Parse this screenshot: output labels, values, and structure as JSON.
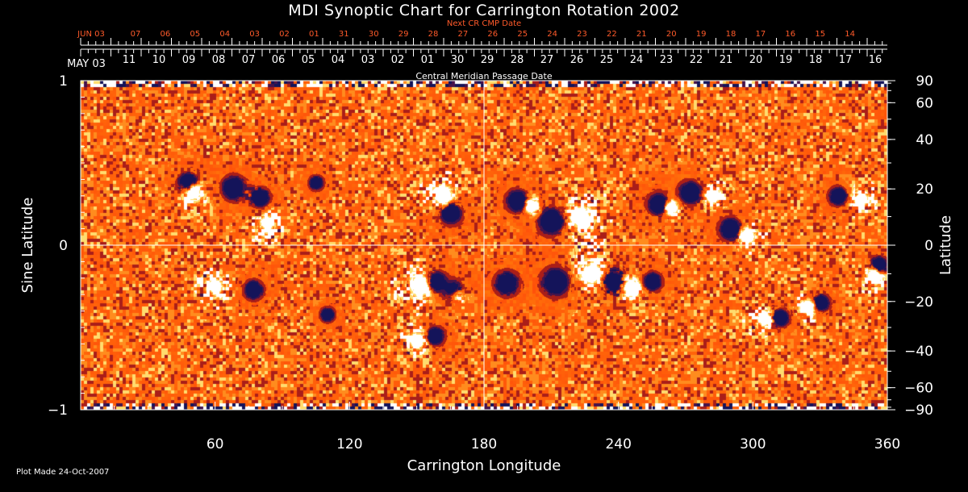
{
  "page": {
    "title": "MDI Synoptic Chart for Carrington Rotation 2002",
    "footer": "Plot Made 24-Oct-2007"
  },
  "chart_data": {
    "type": "heatmap",
    "title": "MDI Synoptic Chart for Carrington Rotation 2002",
    "xlabel": "Carrington Longitude",
    "ylabel_left": "Sine Latitude",
    "ylabel_right": "Latitude",
    "top_axis_label": "Next CR CMP Date",
    "mid_axis_label": "Central Meridian Passage Date",
    "xlim": [
      0,
      360
    ],
    "ylim": [
      -1,
      1
    ],
    "x_ticks": [
      60,
      120,
      180,
      240,
      300,
      360
    ],
    "y_left_ticks": [
      {
        "value": 1,
        "label": "1"
      },
      {
        "value": 0,
        "label": "0"
      },
      {
        "value": -1,
        "label": "−1"
      }
    ],
    "y_right_ticks": [
      {
        "deg": 90,
        "label": "90"
      },
      {
        "deg": 60,
        "label": "60"
      },
      {
        "deg": 40,
        "label": "40"
      },
      {
        "deg": 20,
        "label": "20"
      },
      {
        "deg": 0,
        "label": "0"
      },
      {
        "deg": -20,
        "label": "−20"
      },
      {
        "deg": -40,
        "label": "−40"
      },
      {
        "deg": -60,
        "label": "−60"
      },
      {
        "deg": -90,
        "label": "−90"
      }
    ],
    "upper_date_labels": [
      "JUN 03",
      "07",
      "06",
      "05",
      "04",
      "03",
      "02",
      "01",
      "31",
      "30",
      "29",
      "28",
      "27",
      "26",
      "25",
      "24",
      "23",
      "22",
      "21",
      "20",
      "19",
      "18",
      "17",
      "16",
      "15",
      "14"
    ],
    "lower_date_labels": [
      "MAY 03",
      "11",
      "10",
      "09",
      "08",
      "07",
      "06",
      "05",
      "04",
      "03",
      "02",
      "01",
      "30",
      "29",
      "28",
      "27",
      "26",
      "25",
      "24",
      "23",
      "22",
      "21",
      "20",
      "19",
      "18",
      "17",
      "16"
    ],
    "colors": {
      "background": "#000000",
      "field": "#ff5a10",
      "positive": "#ffffff",
      "negative": "#14145a",
      "axis": "#ffffff",
      "date_text": "#ff5a2a"
    },
    "active_regions": [
      {
        "lon": 48,
        "sinlat": 0.38,
        "pol": -1,
        "s": 5
      },
      {
        "lon": 50,
        "sinlat": 0.33,
        "pol": 1,
        "s": 5
      },
      {
        "lon": 68,
        "sinlat": 0.35,
        "pol": -1,
        "s": 5
      },
      {
        "lon": 80,
        "sinlat": 0.29,
        "pol": -1,
        "s": 4
      },
      {
        "lon": 83,
        "sinlat": 0.13,
        "pol": 1,
        "s": 4
      },
      {
        "lon": 105,
        "sinlat": 0.38,
        "pol": -1,
        "s": 3
      },
      {
        "lon": 162,
        "sinlat": 0.3,
        "pol": 1,
        "s": 5
      },
      {
        "lon": 165,
        "sinlat": 0.2,
        "pol": -1,
        "s": 5
      },
      {
        "lon": 195,
        "sinlat": 0.27,
        "pol": -1,
        "s": 5
      },
      {
        "lon": 201,
        "sinlat": 0.24,
        "pol": 1,
        "s": 4
      },
      {
        "lon": 210,
        "sinlat": 0.15,
        "pol": -1,
        "s": 6
      },
      {
        "lon": 223,
        "sinlat": 0.17,
        "pol": 1,
        "s": 6
      },
      {
        "lon": 258,
        "sinlat": 0.25,
        "pol": -1,
        "s": 5
      },
      {
        "lon": 263,
        "sinlat": 0.23,
        "pol": 1,
        "s": 4
      },
      {
        "lon": 272,
        "sinlat": 0.32,
        "pol": -1,
        "s": 5
      },
      {
        "lon": 282,
        "sinlat": 0.3,
        "pol": 1,
        "s": 4
      },
      {
        "lon": 290,
        "sinlat": 0.1,
        "pol": -1,
        "s": 5
      },
      {
        "lon": 297,
        "sinlat": 0.06,
        "pol": 1,
        "s": 4
      },
      {
        "lon": 338,
        "sinlat": 0.3,
        "pol": -1,
        "s": 4
      },
      {
        "lon": 348,
        "sinlat": 0.28,
        "pol": 1,
        "s": 4
      },
      {
        "lon": 60,
        "sinlat": -0.26,
        "pol": 1,
        "s": 4
      },
      {
        "lon": 77,
        "sinlat": -0.27,
        "pol": -1,
        "s": 4
      },
      {
        "lon": 152,
        "sinlat": -0.24,
        "pol": 1,
        "s": 6
      },
      {
        "lon": 158,
        "sinlat": -0.22,
        "pol": -1,
        "s": 5
      },
      {
        "lon": 167,
        "sinlat": -0.28,
        "pol": -1,
        "s": 5
      },
      {
        "lon": 168,
        "sinlat": -0.3,
        "pol": 1,
        "s": 4
      },
      {
        "lon": 190,
        "sinlat": -0.23,
        "pol": -1,
        "s": 5
      },
      {
        "lon": 212,
        "sinlat": -0.22,
        "pol": -1,
        "s": 6
      },
      {
        "lon": 228,
        "sinlat": -0.17,
        "pol": 1,
        "s": 6
      },
      {
        "lon": 238,
        "sinlat": -0.22,
        "pol": -1,
        "s": 6
      },
      {
        "lon": 245,
        "sinlat": -0.25,
        "pol": 1,
        "s": 5
      },
      {
        "lon": 255,
        "sinlat": -0.22,
        "pol": -1,
        "s": 4
      },
      {
        "lon": 150,
        "sinlat": -0.58,
        "pol": 1,
        "s": 4
      },
      {
        "lon": 158,
        "sinlat": -0.55,
        "pol": -1,
        "s": 4
      },
      {
        "lon": 110,
        "sinlat": -0.42,
        "pol": -1,
        "s": 3
      },
      {
        "lon": 305,
        "sinlat": -0.45,
        "pol": 1,
        "s": 4
      },
      {
        "lon": 312,
        "sinlat": -0.44,
        "pol": -1,
        "s": 4
      },
      {
        "lon": 325,
        "sinlat": -0.37,
        "pol": 1,
        "s": 4
      },
      {
        "lon": 330,
        "sinlat": -0.35,
        "pol": -1,
        "s": 4
      },
      {
        "lon": 354,
        "sinlat": -0.18,
        "pol": 1,
        "s": 4
      },
      {
        "lon": 356,
        "sinlat": -0.12,
        "pol": -1,
        "s": 4
      }
    ]
  }
}
